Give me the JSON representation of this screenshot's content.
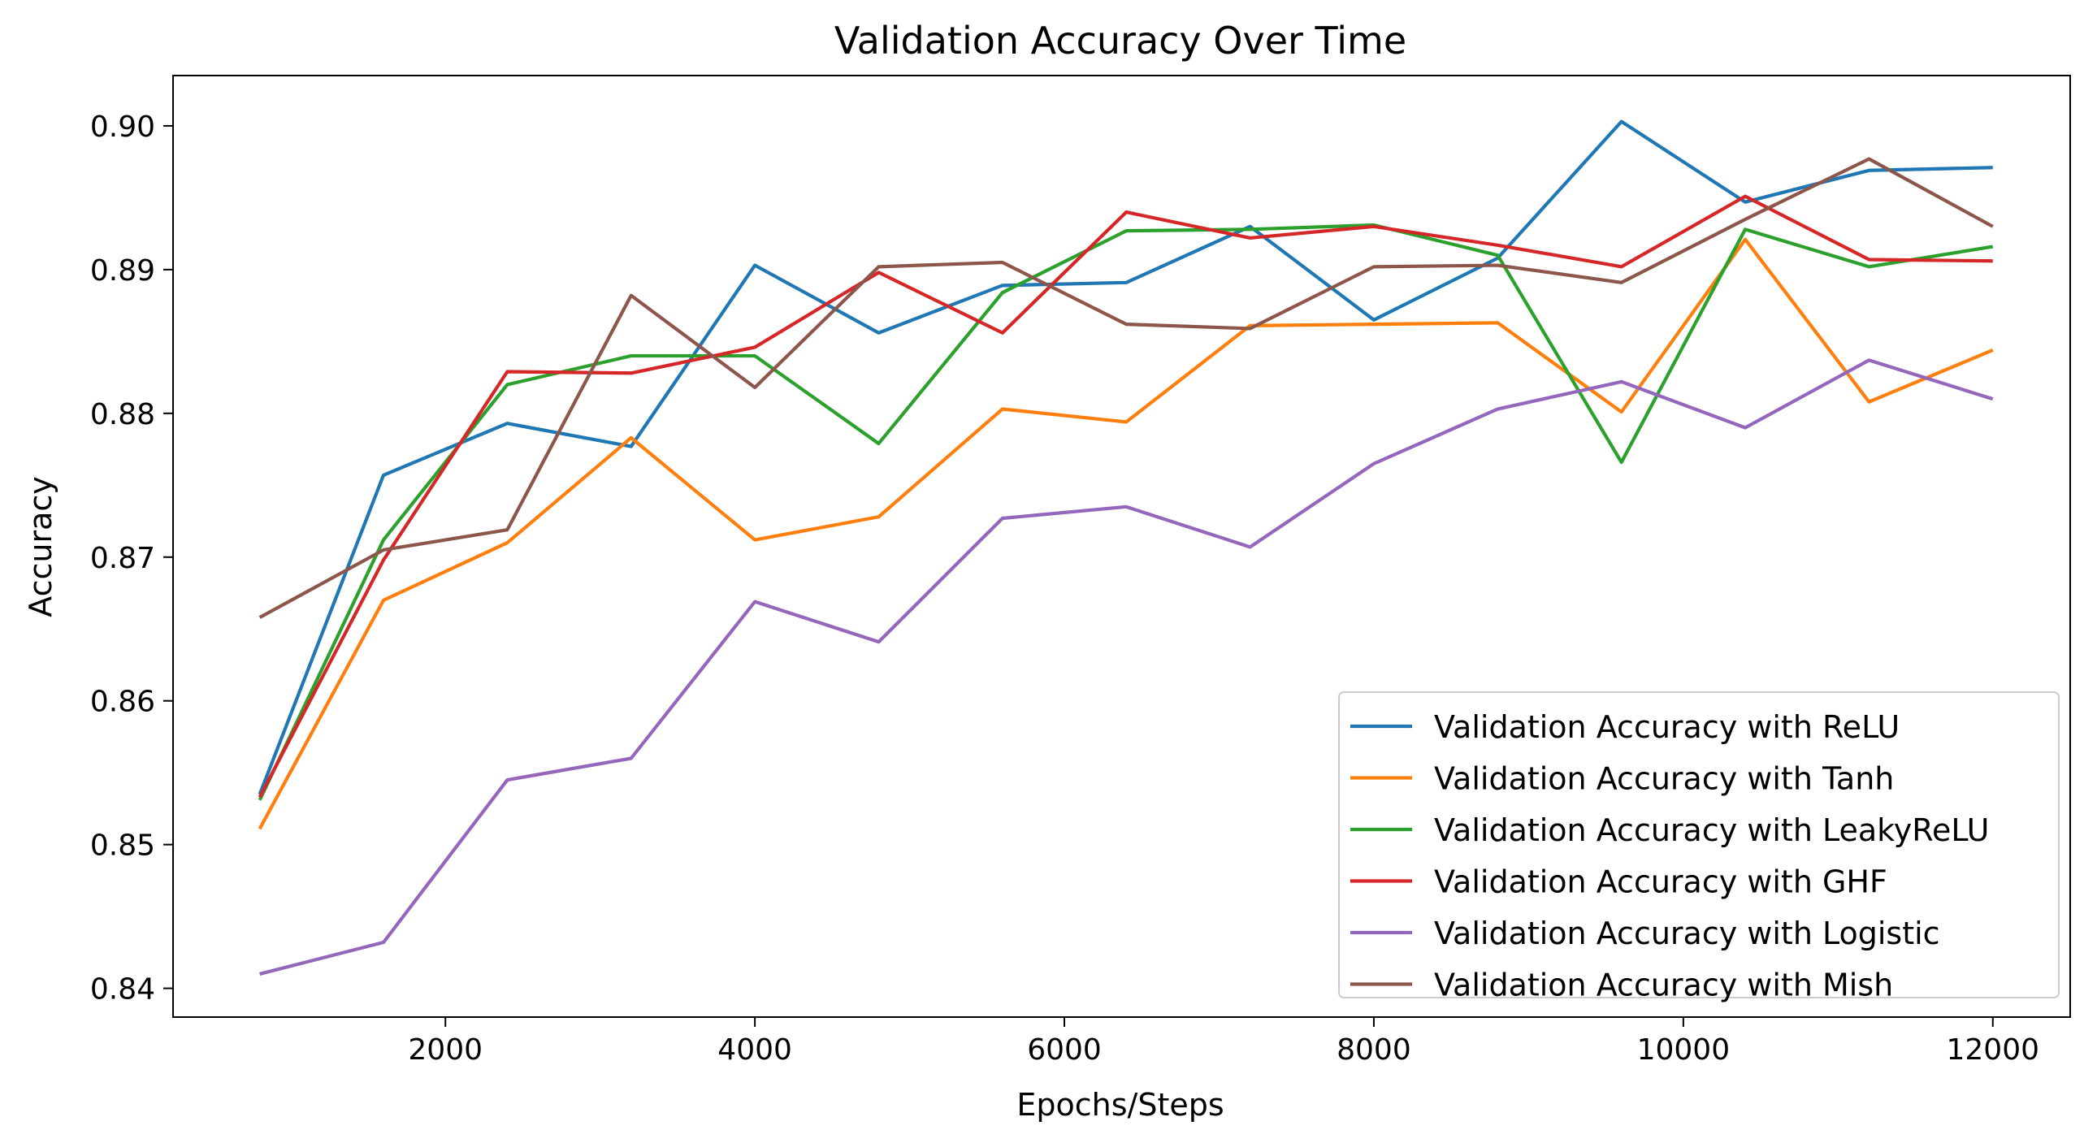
{
  "chart_data": {
    "type": "line",
    "title": "Validation Accuracy Over Time",
    "xlabel": "Epochs/Steps",
    "ylabel": "Accuracy",
    "xlim": [
      240,
      12500
    ],
    "ylim": [
      0.838,
      0.9035
    ],
    "xticks": [
      2000,
      4000,
      6000,
      8000,
      10000,
      12000
    ],
    "xtick_labels": [
      "2000",
      "4000",
      "6000",
      "8000",
      "10000",
      "12000"
    ],
    "yticks": [
      0.84,
      0.85,
      0.86,
      0.87,
      0.88,
      0.89,
      0.9
    ],
    "ytick_labels": [
      "0.84",
      "0.85",
      "0.86",
      "0.87",
      "0.88",
      "0.89",
      "0.90"
    ],
    "grid": false,
    "legend_position": "lower-right",
    "x": [
      800,
      1600,
      2400,
      3200,
      4000,
      4800,
      5600,
      6400,
      7200,
      8000,
      8800,
      9600,
      10400,
      11200,
      12000
    ],
    "series": [
      {
        "name": "Validation Accuracy with ReLU",
        "color": "#1f77b4",
        "values": [
          0.8535,
          0.8757,
          0.8793,
          0.8777,
          0.8903,
          0.8856,
          0.8889,
          0.8891,
          0.893,
          0.8865,
          0.8908,
          0.9003,
          0.8947,
          0.8969,
          0.8971
        ]
      },
      {
        "name": "Validation Accuracy with Tanh",
        "color": "#ff7f0e",
        "values": [
          0.8511,
          0.867,
          0.871,
          0.8783,
          0.8712,
          0.8728,
          0.8803,
          0.8794,
          0.8861,
          0.8862,
          0.8863,
          0.8801,
          0.8921,
          0.8808,
          0.8844
        ]
      },
      {
        "name": "Validation Accuracy with LeakyReLU",
        "color": "#2ca02c",
        "values": [
          0.8531,
          0.8712,
          0.882,
          0.884,
          0.884,
          0.8779,
          0.8884,
          0.8927,
          0.8928,
          0.8931,
          0.891,
          0.8766,
          0.8928,
          0.8902,
          0.8916
        ]
      },
      {
        "name": "Validation Accuracy with GHF",
        "color": "#d62728",
        "values": [
          0.8533,
          0.8698,
          0.8829,
          0.8828,
          0.8846,
          0.8898,
          0.8856,
          0.894,
          0.8922,
          0.893,
          0.8917,
          0.8902,
          0.8951,
          0.8907,
          0.8906
        ]
      },
      {
        "name": "Validation Accuracy with Logistic",
        "color": "#9467bd",
        "values": [
          0.841,
          0.8432,
          0.8545,
          0.856,
          0.8669,
          0.8641,
          0.8727,
          0.8735,
          0.8707,
          0.8765,
          0.8803,
          0.8822,
          0.879,
          0.8837,
          0.881
        ]
      },
      {
        "name": "Validation Accuracy with Mish",
        "color": "#8c564b",
        "values": [
          0.8658,
          0.8705,
          0.8719,
          0.8882,
          0.8818,
          0.8902,
          0.8905,
          0.8862,
          0.8859,
          0.8902,
          0.8903,
          0.8891,
          0.8935,
          0.8977,
          0.893
        ]
      }
    ]
  }
}
